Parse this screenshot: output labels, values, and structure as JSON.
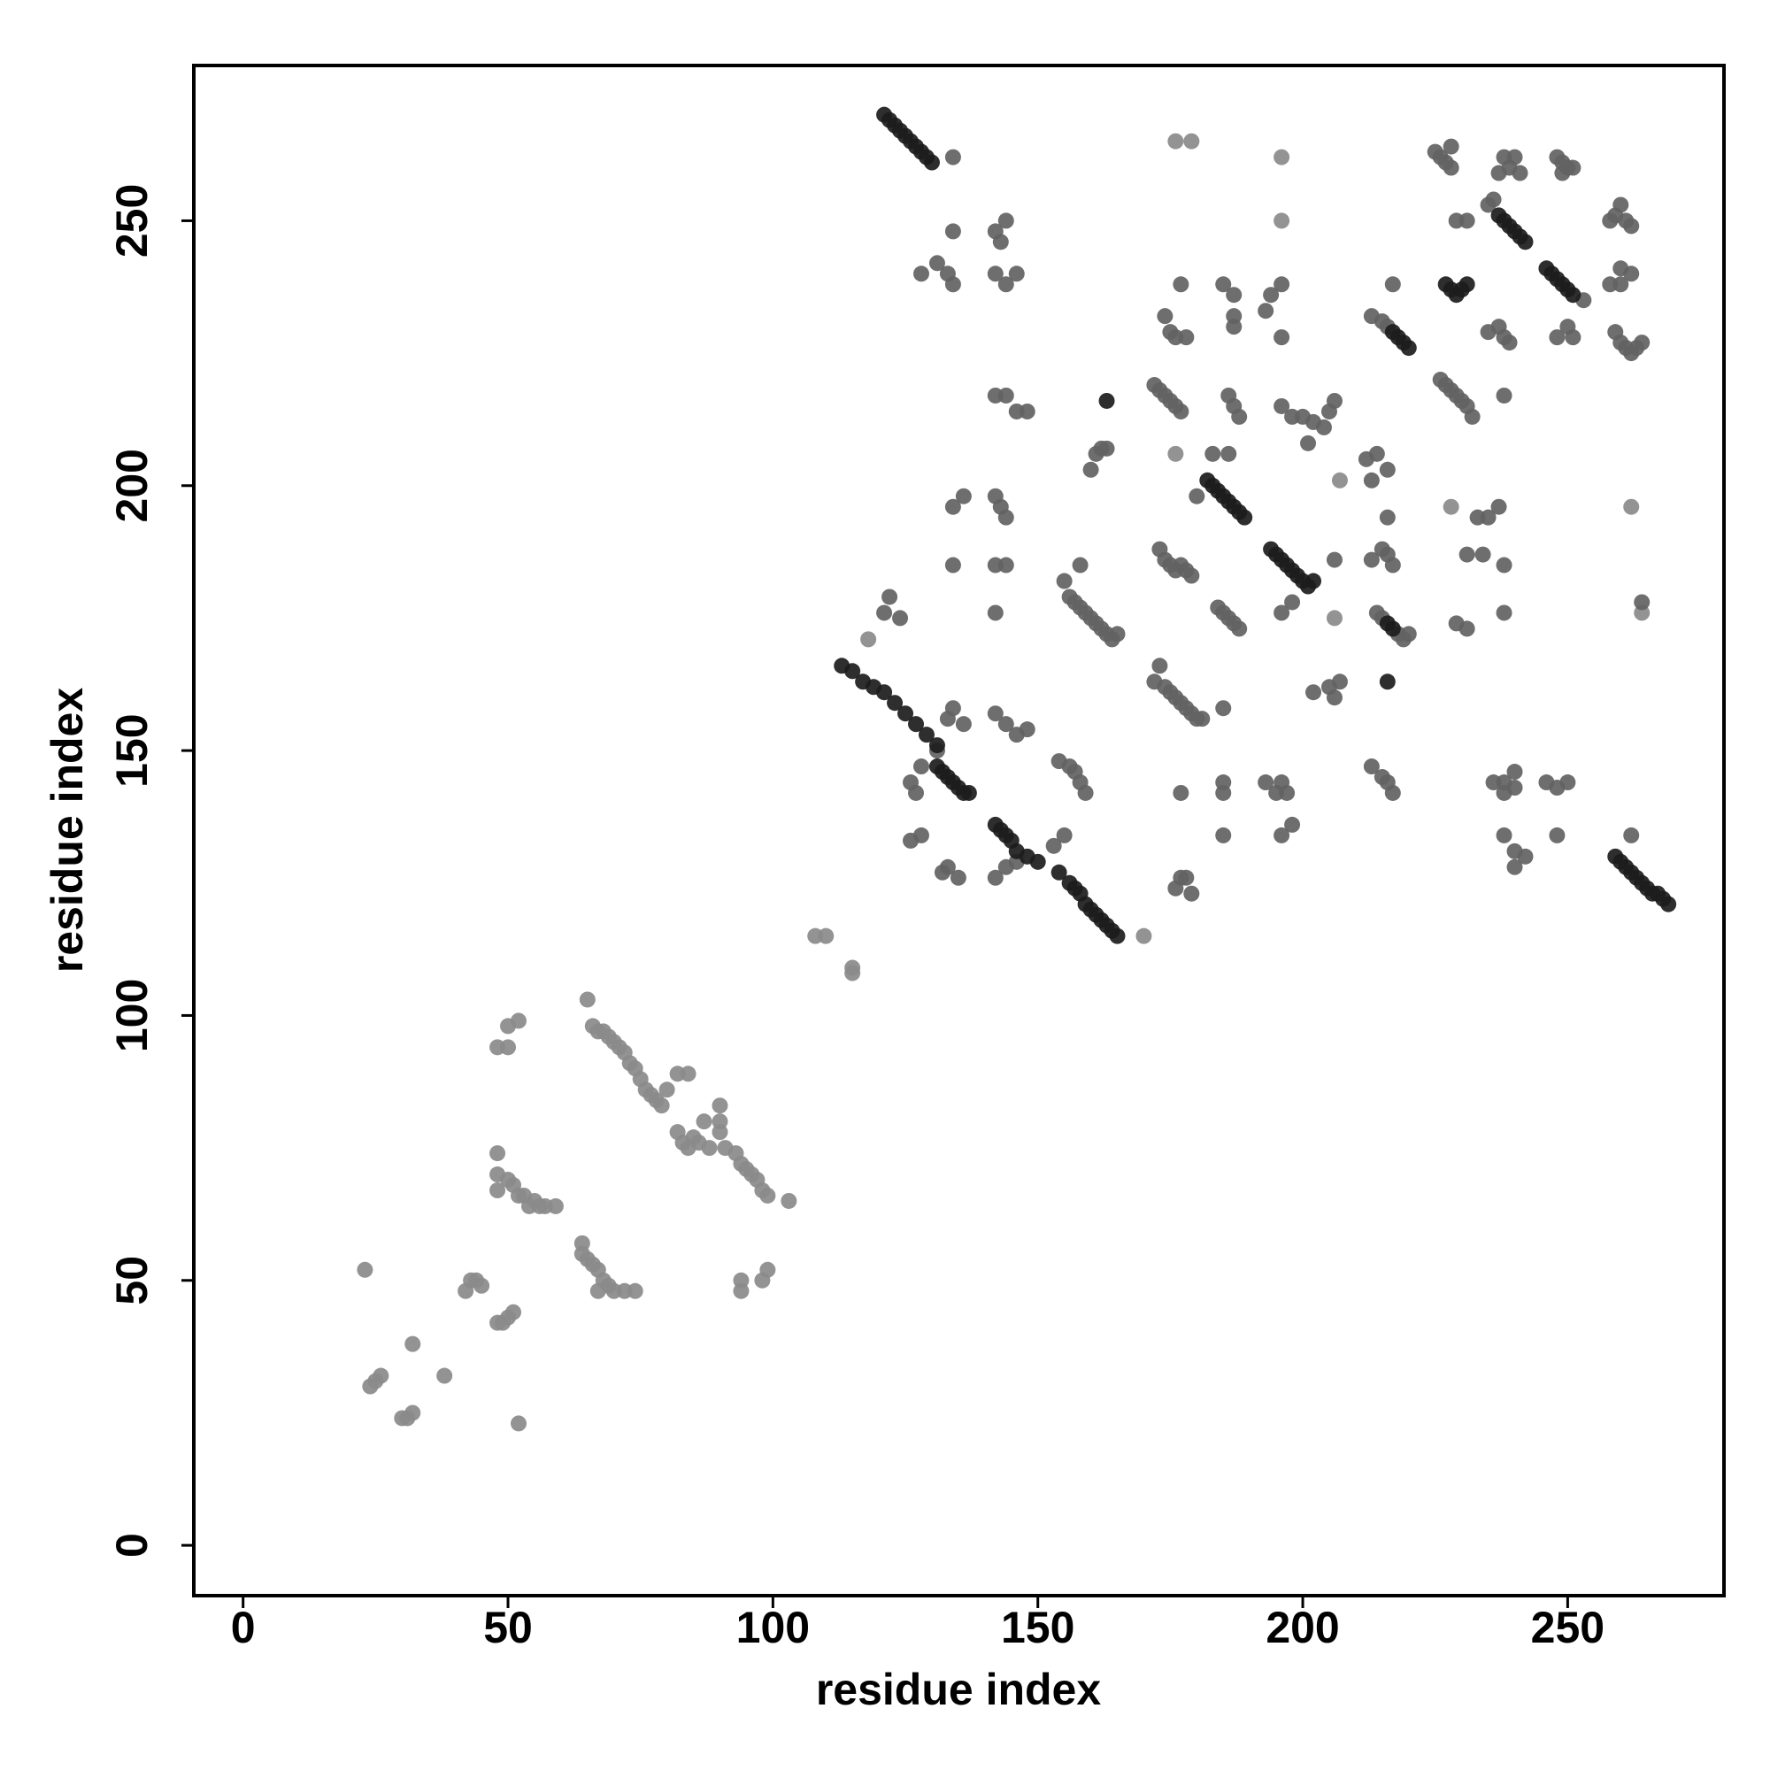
{
  "chart_data": {
    "type": "scatter",
    "xlabel": "residue index",
    "ylabel": "residue index",
    "xlim": [
      -9.3,
      279.5
    ],
    "ylim": [
      -9.5,
      279.3
    ],
    "xticks": [
      0,
      50,
      100,
      150,
      200,
      250
    ],
    "yticks": [
      0,
      50,
      100,
      150,
      200,
      250
    ],
    "grid": false,
    "series": [
      {
        "color": "#8a8a8a",
        "x": [
          23,
          24,
          25,
          26,
          30,
          31,
          32,
          32,
          38,
          42,
          43,
          44,
          45,
          48,
          49,
          50,
          51,
          52,
          48,
          50,
          50,
          52,
          48,
          48,
          48,
          50,
          51,
          52,
          53,
          54,
          55,
          56,
          57,
          59,
          64,
          64,
          65,
          66,
          67,
          68,
          69,
          70,
          72,
          74,
          67,
          65,
          66,
          67,
          68,
          69,
          70,
          71,
          72,
          73,
          74,
          75,
          76,
          77,
          78,
          79,
          80,
          82,
          84,
          82,
          83,
          84,
          85,
          86,
          87,
          88,
          90,
          90,
          90,
          91,
          93,
          94,
          95,
          96,
          97,
          98,
          99,
          94,
          94,
          98,
          99,
          103,
          108,
          110,
          115,
          115,
          118,
          176,
          179,
          196,
          196,
          176,
          207,
          206,
          170,
          228,
          262,
          264
        ],
        "values": [
          52,
          30,
          31,
          32,
          24,
          24,
          25,
          38,
          32,
          48,
          50,
          50,
          49,
          42,
          42,
          43,
          44,
          23,
          94,
          94,
          98,
          99,
          74,
          70,
          67,
          69,
          68,
          66,
          66,
          64,
          65,
          64,
          64,
          64,
          57,
          55,
          54,
          53,
          52,
          50,
          49,
          48,
          48,
          48,
          48,
          103,
          98,
          97,
          97,
          96,
          95,
          94,
          93,
          91,
          90,
          88,
          86,
          85,
          84,
          83,
          86,
          89,
          89,
          78,
          76,
          75,
          77,
          76,
          80,
          75,
          83,
          80,
          78,
          75,
          74,
          72,
          71,
          70,
          69,
          67,
          66,
          48,
          50,
          50,
          52,
          65,
          115,
          115,
          108,
          109,
          171,
          265,
          265,
          262,
          250,
          206,
          201,
          175,
          115,
          196,
          196,
          176
        ]
      },
      {
        "color": "#626262",
        "x": [
          121,
          122,
          124,
          126,
          127,
          128,
          126,
          128,
          131,
          133,
          134,
          136,
          132,
          133,
          135,
          128,
          131,
          133,
          134,
          134,
          134,
          134,
          136,
          134,
          142,
          143,
          144,
          142,
          144,
          146,
          142,
          144,
          146,
          148,
          142,
          143,
          144,
          142,
          144,
          142,
          142,
          144,
          146,
          148,
          144,
          146,
          142,
          154,
          156,
          157,
          158,
          159,
          155,
          153,
          155,
          156,
          157,
          158,
          159,
          160,
          161,
          162,
          163,
          164,
          165,
          158,
          160,
          161,
          162,
          163,
          172,
          173,
          174,
          175,
          176,
          177,
          178,
          179,
          180,
          181,
          185,
          176,
          177,
          178,
          179,
          177,
          172,
          173,
          174,
          175,
          176,
          177,
          174,
          175,
          176,
          178,
          177,
          173,
          174,
          175,
          176,
          177,
          178,
          179,
          180,
          184,
          185,
          186,
          187,
          188,
          185,
          185,
          185,
          186,
          187,
          188,
          185,
          187,
          187,
          187,
          183,
          186,
          193,
          194,
          196,
          196,
          196,
          198,
          200,
          201,
          202,
          204,
          205,
          206,
          193,
          195,
          196,
          197,
          198,
          196,
          196,
          198,
          202,
          205,
          206,
          207,
          206,
          212,
          213,
          214,
          216,
          216,
          213,
          215,
          216,
          217,
          213,
          215,
          216,
          217,
          214,
          215,
          218,
          219,
          220,
          213,
          215,
          216,
          217,
          225,
          226,
          227,
          228,
          228,
          229,
          231,
          226,
          227,
          228,
          229,
          230,
          231,
          232,
          229,
          231,
          231,
          233,
          235,
          234,
          237,
          238,
          238,
          236,
          235,
          236,
          237,
          238,
          239,
          240,
          241,
          235,
          237,
          238,
          239,
          238,
          238,
          238,
          240,
          240,
          238,
          240,
          242,
          240,
          250,
          248,
          251,
          253,
          248,
          249,
          250,
          251,
          249,
          246,
          248,
          250,
          248,
          258,
          259,
          260,
          261,
          262,
          260,
          262,
          258,
          260,
          259,
          260,
          261,
          262,
          263,
          264,
          264,
          262
        ],
        "values": [
          176,
          179,
          175,
          144,
          142,
          134,
          133,
          147,
          150,
          156,
          158,
          155,
          127,
          128,
          126,
          240,
          242,
          240,
          238,
          248,
          262,
          196,
          198,
          185,
          248,
          246,
          250,
          240,
          238,
          240,
          217,
          217,
          214,
          214,
          198,
          196,
          194,
          185,
          185,
          176,
          157,
          155,
          153,
          154,
          128,
          129,
          126,
          148,
          147,
          146,
          144,
          142,
          134,
          132,
          182,
          179,
          178,
          177,
          176,
          175,
          174,
          173,
          172,
          171,
          172,
          185,
          203,
          206,
          207,
          207,
          163,
          166,
          162,
          161,
          160,
          159,
          158,
          157,
          156,
          156,
          158,
          124,
          126,
          126,
          123,
          142,
          219,
          218,
          217,
          216,
          215,
          214,
          232,
          229,
          228,
          228,
          238,
          188,
          186,
          185,
          184,
          185,
          184,
          183,
          198,
          177,
          176,
          175,
          174,
          173,
          134,
          144,
          142,
          217,
          215,
          213,
          238,
          236,
          232,
          230,
          206,
          206,
          233,
          236,
          238,
          228,
          215,
          213,
          213,
          208,
          212,
          211,
          214,
          216,
          144,
          142,
          144,
          142,
          136,
          134,
          176,
          178,
          161,
          162,
          160,
          163,
          186,
          205,
          201,
          206,
          203,
          194,
          186,
          188,
          187,
          185,
          232,
          231,
          230,
          238,
          176,
          175,
          172,
          171,
          172,
          147,
          145,
          144,
          142,
          263,
          262,
          261,
          260,
          264,
          250,
          250,
          220,
          219,
          218,
          217,
          216,
          215,
          213,
          174,
          173,
          187,
          194,
          194,
          187,
          196,
          185,
          176,
          144,
          253,
          254,
          259,
          262,
          260,
          262,
          259,
          229,
          230,
          228,
          227,
          217,
          144,
          142,
          143,
          146,
          134,
          131,
          130,
          128,
          230,
          228,
          228,
          235,
          262,
          261,
          260,
          260,
          259,
          144,
          143,
          144,
          134,
          250,
          251,
          253,
          250,
          249,
          241,
          240,
          238,
          238,
          229,
          227,
          226,
          225,
          226,
          227,
          178,
          134
        ]
      },
      {
        "color": "#1c1c1c",
        "x": [
          113,
          115,
          117,
          119,
          121,
          123,
          125,
          127,
          129,
          131,
          131,
          132,
          133,
          134,
          135,
          136,
          137,
          142,
          143,
          144,
          145,
          146,
          148,
          150,
          154,
          156,
          157,
          158,
          159,
          160,
          161,
          162,
          163,
          164,
          165,
          121,
          122,
          123,
          124,
          125,
          126,
          127,
          128,
          129,
          130,
          163,
          182,
          183,
          184,
          185,
          186,
          187,
          188,
          189,
          194,
          195,
          196,
          197,
          198,
          199,
          200,
          201,
          202,
          216,
          217,
          216,
          217,
          218,
          219,
          220,
          227,
          228,
          229,
          230,
          231,
          237,
          238,
          239,
          240,
          241,
          242,
          246,
          247,
          248,
          249,
          250,
          251,
          259,
          260,
          261,
          262,
          263,
          264,
          265,
          266,
          267,
          268,
          269
        ],
        "values": [
          166,
          165,
          163,
          162,
          161,
          159,
          157,
          155,
          153,
          151,
          147,
          146,
          145,
          144,
          143,
          142,
          142,
          136,
          135,
          134,
          133,
          131,
          130,
          129,
          127,
          125,
          124,
          123,
          121,
          120,
          119,
          118,
          117,
          116,
          115,
          270,
          269,
          268,
          267,
          266,
          265,
          264,
          263,
          262,
          261,
          216,
          201,
          200,
          199,
          198,
          197,
          196,
          195,
          194,
          188,
          187,
          186,
          185,
          184,
          183,
          182,
          181,
          182,
          174,
          173,
          163,
          229,
          228,
          227,
          226,
          238,
          237,
          236,
          237,
          238,
          251,
          250,
          249,
          248,
          247,
          246,
          241,
          240,
          239,
          238,
          237,
          236,
          130,
          129,
          128,
          127,
          126,
          125,
          124,
          123,
          123,
          122,
          121
        ]
      }
    ]
  }
}
